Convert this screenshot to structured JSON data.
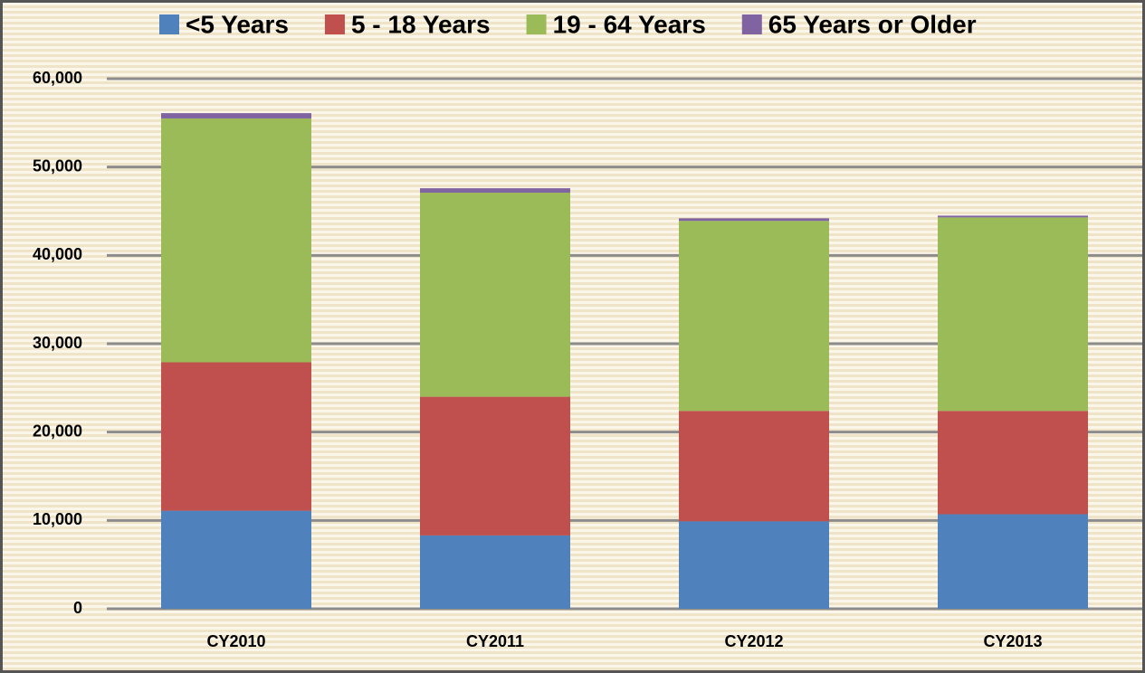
{
  "chart_data": {
    "type": "stacked_bar",
    "categories": [
      "CY2010",
      "CY2011",
      "CY2012",
      "CY2013"
    ],
    "series": [
      {
        "name": "<5 Years",
        "color": "#4f81bd",
        "values": [
          11100,
          8300,
          9900,
          10700
        ]
      },
      {
        "name": "5 - 18 Years",
        "color": "#c0504d",
        "values": [
          16800,
          15700,
          12500,
          11700
        ]
      },
      {
        "name": "19 - 64 Years",
        "color": "#9bbb59",
        "values": [
          27600,
          23100,
          21500,
          21900
        ]
      },
      {
        "name": "65 Years or Older",
        "color": "#8064a2",
        "values": [
          600,
          500,
          300,
          200
        ]
      }
    ],
    "ylim": [
      0,
      60000
    ],
    "yticks": [
      0,
      {
        "value": 10000,
        "label": "10,000"
      },
      {
        "value": 20000,
        "label": "20,000"
      },
      {
        "value": 30000,
        "label": "30,000"
      },
      {
        "value": 40000,
        "label": "40,000"
      },
      {
        "value": 50000,
        "label": "50,000"
      },
      {
        "value": 60000,
        "label": "60,000"
      }
    ],
    "grid": true,
    "legend": "top"
  }
}
